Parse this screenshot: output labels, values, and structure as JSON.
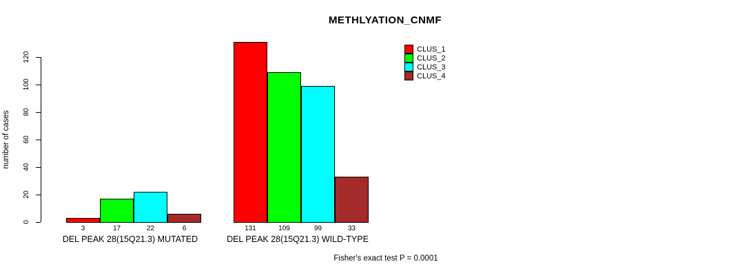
{
  "chart_data": {
    "type": "bar",
    "title": "METHLYATION_CNMF",
    "xlabel": "",
    "ylabel": "number of cases",
    "ylim": [
      0,
      131
    ],
    "yticks": [
      0,
      20,
      40,
      60,
      80,
      100,
      120
    ],
    "grid": false,
    "legend_position": "top-right",
    "categories": [
      "DEL PEAK 28(15Q21.3) MUTATED",
      "DEL PEAK 28(15Q21.3) WILD-TYPE"
    ],
    "series": [
      {
        "name": "CLUS_1",
        "color": "#FF0000",
        "values": [
          3,
          131
        ]
      },
      {
        "name": "CLUS_2",
        "color": "#00FF00",
        "values": [
          17,
          109
        ]
      },
      {
        "name": "CLUS_3",
        "color": "#00FFFF",
        "values": [
          22,
          99
        ]
      },
      {
        "name": "CLUS_4",
        "color": "#A52A2A",
        "values": [
          6,
          33
        ]
      }
    ],
    "bar_value_labels": [
      [
        3,
        17,
        22,
        6
      ],
      [
        131,
        109,
        99,
        33
      ]
    ],
    "annotation": "Fisher's exact test P = 0.0001"
  }
}
